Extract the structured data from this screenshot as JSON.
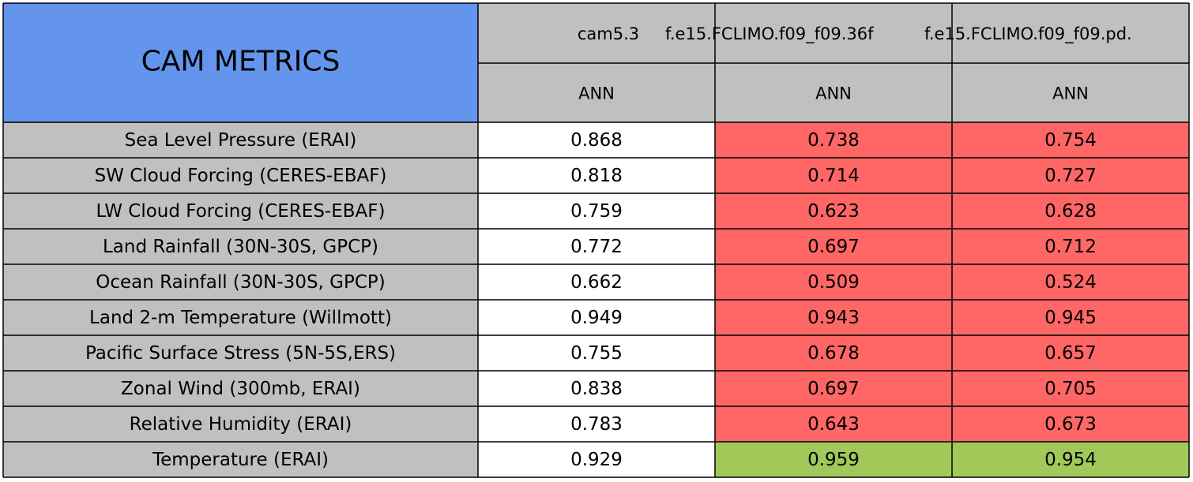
{
  "header": {
    "title": "CAM METRICS",
    "models": [
      "cam5.3",
      "f.e15.FCLIMO.f09_f09.36f",
      "f.e15.FCLIMO.f09_f09.pd."
    ],
    "seasons": [
      "ANN",
      "ANN",
      "ANN"
    ]
  },
  "colors": {
    "title": "#6495ed",
    "header": "#c0c0c0",
    "label": "#c0c0c0"
  },
  "rows": [
    {
      "label": "Sea Level Pressure (ERAI)",
      "values": [
        0.868,
        0.738,
        0.754
      ],
      "cell_colors": [
        "#ffffff",
        "#ff6666",
        "#ff6666"
      ]
    },
    {
      "label": "SW Cloud Forcing (CERES-EBAF)",
      "values": [
        0.818,
        0.714,
        0.727
      ],
      "cell_colors": [
        "#ffffff",
        "#ff6666",
        "#ff6666"
      ]
    },
    {
      "label": "LW Cloud Forcing (CERES-EBAF)",
      "values": [
        0.759,
        0.623,
        0.628
      ],
      "cell_colors": [
        "#ffffff",
        "#ff6666",
        "#ff6666"
      ]
    },
    {
      "label": "Land Rainfall (30N-30S, GPCP)",
      "values": [
        0.772,
        0.697,
        0.712
      ],
      "cell_colors": [
        "#ffffff",
        "#ff6666",
        "#ff6666"
      ]
    },
    {
      "label": "Ocean Rainfall (30N-30S, GPCP)",
      "values": [
        0.662,
        0.509,
        0.524
      ],
      "cell_colors": [
        "#ffffff",
        "#ff6666",
        "#ff6666"
      ]
    },
    {
      "label": "Land 2-m Temperature (Willmott)",
      "values": [
        0.949,
        0.943,
        0.945
      ],
      "cell_colors": [
        "#ffffff",
        "#ff6666",
        "#ff6666"
      ]
    },
    {
      "label": "Pacific Surface Stress (5N-5S,ERS)",
      "values": [
        0.755,
        0.678,
        0.657
      ],
      "cell_colors": [
        "#ffffff",
        "#ff6666",
        "#ff6666"
      ]
    },
    {
      "label": "Zonal Wind (300mb, ERAI)",
      "values": [
        0.838,
        0.697,
        0.705
      ],
      "cell_colors": [
        "#ffffff",
        "#ff6666",
        "#ff6666"
      ]
    },
    {
      "label": "Relative Humidity (ERAI)",
      "values": [
        0.783,
        0.643,
        0.673
      ],
      "cell_colors": [
        "#ffffff",
        "#ff6666",
        "#ff6666"
      ]
    },
    {
      "label": "Temperature (ERAI)",
      "values": [
        0.929,
        0.959,
        0.954
      ],
      "cell_colors": [
        "#ffffff",
        "#a0c95a",
        "#a0c95a"
      ]
    }
  ]
}
